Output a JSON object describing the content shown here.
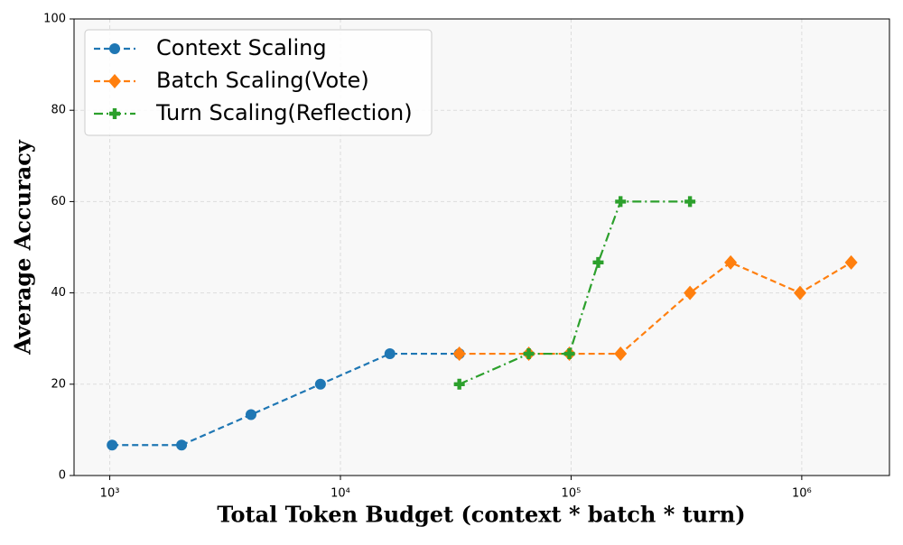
{
  "chart_data": {
    "type": "line",
    "xlabel": "Total Token Budget (context * batch * turn)",
    "ylabel": "Average Accuracy",
    "xscale": "log",
    "xlim": [
      700,
      2400000
    ],
    "ylim": [
      0,
      100
    ],
    "xticks": [
      {
        "value": 1000,
        "label": "10³"
      },
      {
        "value": 10000,
        "label": "10⁴"
      },
      {
        "value": 100000,
        "label": "10⁵"
      },
      {
        "value": 1000000,
        "label": "10⁶"
      }
    ],
    "yticks": [
      0,
      20,
      40,
      60,
      80,
      100
    ],
    "grid": true,
    "legend": "upper left",
    "series": [
      {
        "name": "Context Scaling",
        "color": "#1f77b4",
        "marker": "circle",
        "linestyle": "dashed",
        "x": [
          1024,
          2048,
          4096,
          8192,
          16384,
          32768
        ],
        "values": [
          6.67,
          6.67,
          13.33,
          20,
          26.67,
          26.67
        ]
      },
      {
        "name": "Batch Scaling(Vote)",
        "color": "#ff7f0e",
        "marker": "diamond",
        "linestyle": "dashed",
        "x": [
          32768,
          65536,
          98304,
          163840,
          327680,
          491520,
          983040,
          1638400
        ],
        "values": [
          26.67,
          26.67,
          26.67,
          26.67,
          40,
          46.67,
          40,
          46.67
        ]
      },
      {
        "name": "Turn Scaling(Reflection)",
        "color": "#2ca02c",
        "marker": "plus",
        "linestyle": "dashdot",
        "x": [
          32768,
          65536,
          98304,
          131072,
          163840,
          327680
        ],
        "values": [
          20,
          26.67,
          26.67,
          46.67,
          60,
          60
        ]
      }
    ]
  }
}
